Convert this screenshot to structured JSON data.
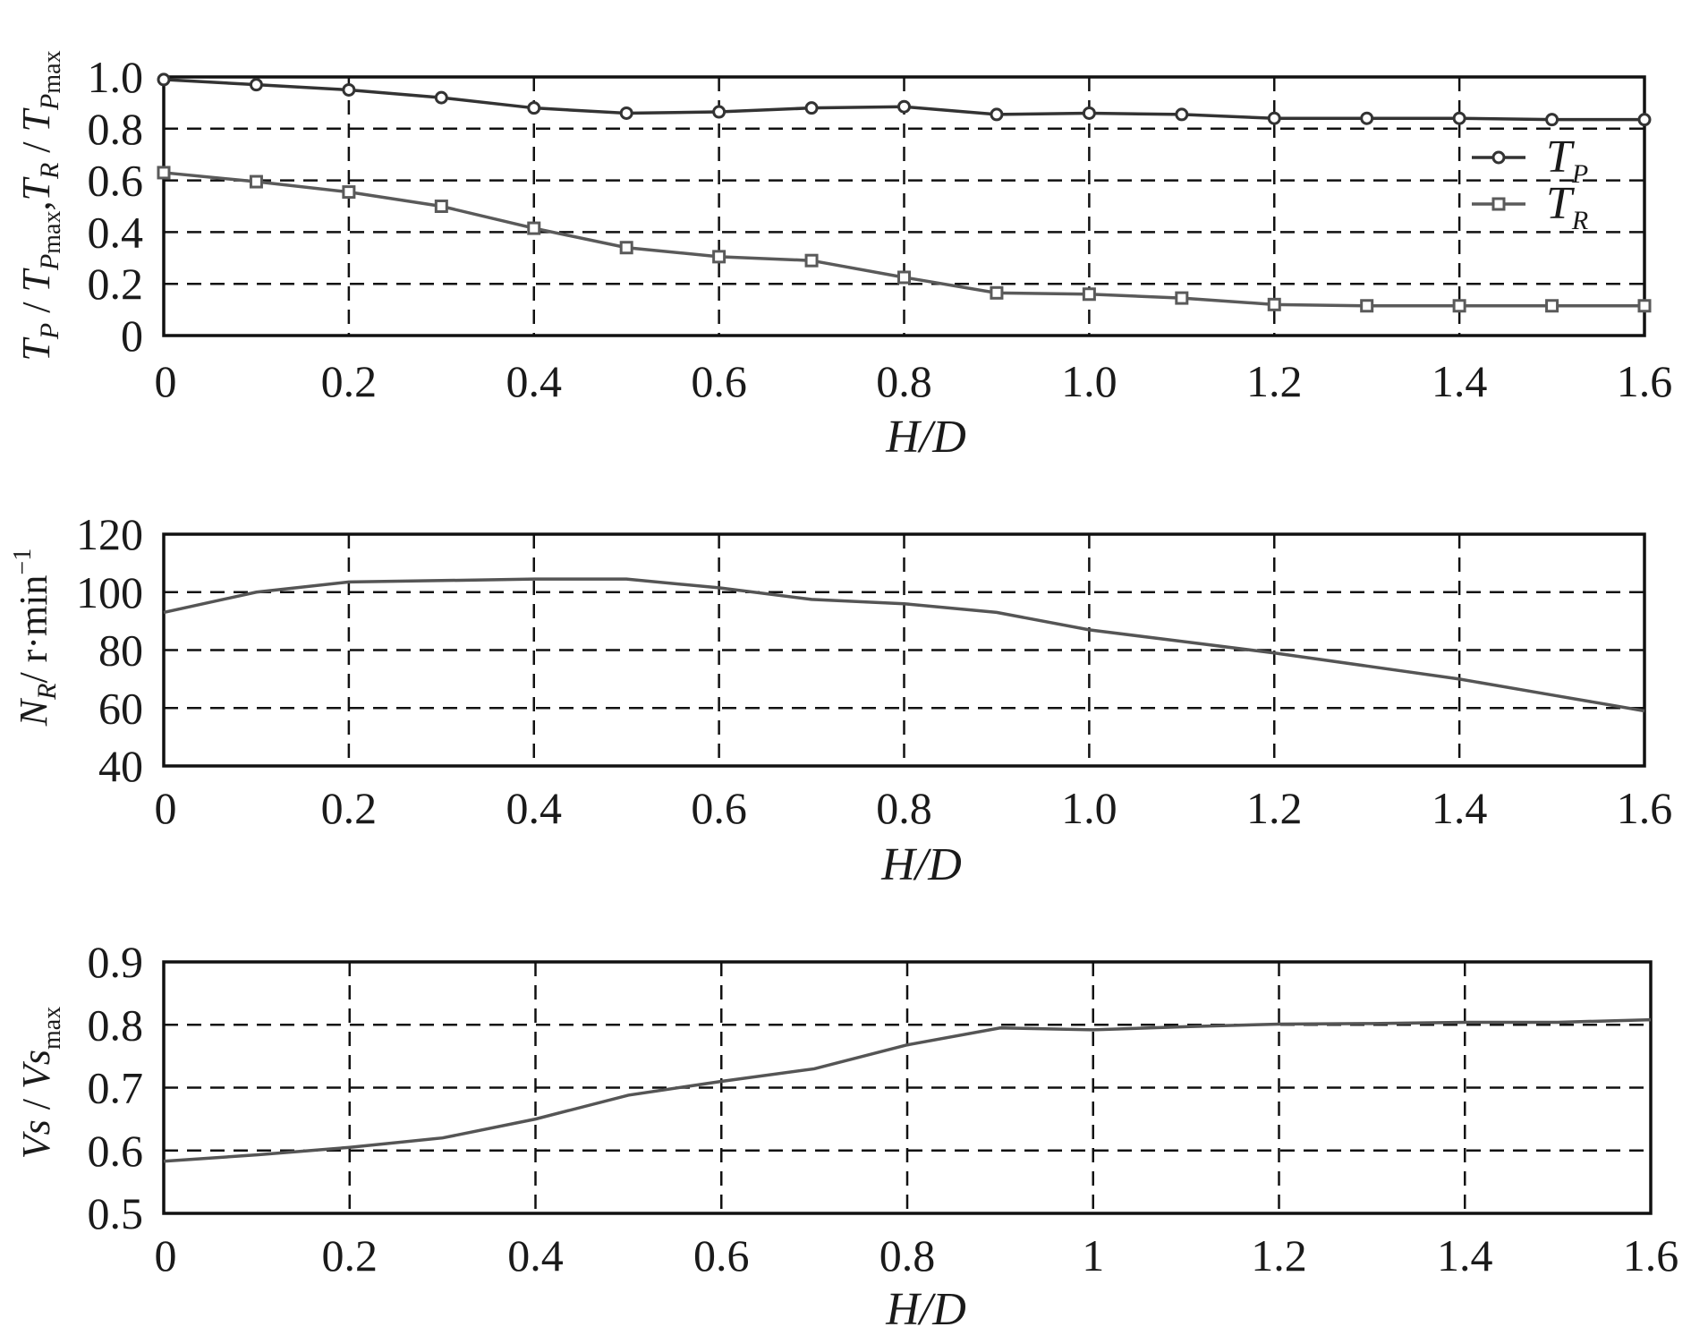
{
  "chart_data": [
    {
      "type": "line",
      "xlabel": "H/D",
      "ylabel": {
        "part1": "T",
        "part1_sub": "P",
        "sep1": " / ",
        "part2": "T",
        "part2_sub": "P",
        "part2_subsub": "max",
        "comma": ",",
        "part3": "T",
        "part3_sub": "R",
        "sep2": " / ",
        "part4": "T",
        "part4_sub": "P",
        "part4_subsub": "max"
      },
      "xlim": [
        0,
        1.6
      ],
      "ylim": [
        0,
        1.0
      ],
      "xticks": [
        "0",
        "0.2",
        "0.4",
        "0.6",
        "0.8",
        "1.0",
        "1.2",
        "1.4",
        "1.6"
      ],
      "yticks": [
        "0",
        "0.2",
        "0.4",
        "0.6",
        "0.8",
        "1.0"
      ],
      "ytick_values": [
        0,
        0.2,
        0.4,
        0.6,
        0.8,
        1.0
      ],
      "grid": true,
      "legend_position": "right",
      "series": [
        {
          "name": "T",
          "name_sub": "P",
          "marker": "circle",
          "color": "#333333",
          "x": [
            0,
            0.1,
            0.2,
            0.3,
            0.4,
            0.5,
            0.6,
            0.7,
            0.8,
            0.9,
            1.0,
            1.1,
            1.2,
            1.3,
            1.4,
            1.5,
            1.6
          ],
          "y": [
            0.99,
            0.97,
            0.95,
            0.92,
            0.88,
            0.86,
            0.865,
            0.88,
            0.885,
            0.855,
            0.86,
            0.855,
            0.84,
            0.84,
            0.84,
            0.835,
            0.835
          ]
        },
        {
          "name": "T",
          "name_sub": "R",
          "marker": "square",
          "color": "#5a5a5a",
          "x": [
            0,
            0.1,
            0.2,
            0.3,
            0.4,
            0.5,
            0.6,
            0.7,
            0.8,
            0.9,
            1.0,
            1.1,
            1.2,
            1.3,
            1.4,
            1.5,
            1.6
          ],
          "y": [
            0.63,
            0.595,
            0.555,
            0.5,
            0.415,
            0.34,
            0.305,
            0.29,
            0.225,
            0.165,
            0.16,
            0.145,
            0.12,
            0.115,
            0.115,
            0.115,
            0.115
          ]
        }
      ]
    },
    {
      "type": "line",
      "xlabel": "H/D",
      "ylabel": {
        "part1": "N",
        "part1_sub": "R",
        "unit": "/ r·min",
        "unit_sup": "−1"
      },
      "xlim": [
        0,
        1.6
      ],
      "ylim": [
        40,
        120
      ],
      "xticks": [
        "0",
        "0.2",
        "0.4",
        "0.6",
        "0.8",
        "1.0",
        "1.2",
        "1.4",
        "1.6"
      ],
      "yticks": [
        "40",
        "60",
        "80",
        "100",
        "120"
      ],
      "ytick_values": [
        40,
        60,
        80,
        100,
        120
      ],
      "grid": true,
      "series": [
        {
          "marker": "none",
          "color": "#555555",
          "x": [
            0,
            0.1,
            0.2,
            0.3,
            0.4,
            0.5,
            0.6,
            0.7,
            0.8,
            0.9,
            1.0,
            1.1,
            1.2,
            1.3,
            1.4,
            1.5,
            1.6
          ],
          "y": [
            93,
            100,
            103.5,
            104,
            104.5,
            104.5,
            101.5,
            97.5,
            96,
            93,
            87,
            83,
            79,
            74.5,
            70,
            64.5,
            59
          ]
        }
      ]
    },
    {
      "type": "line",
      "xlabel": "H/D",
      "ylabel": {
        "part1": "Vs",
        "sep1": " / ",
        "part2": "Vs",
        "part2_sub": "max"
      },
      "xlim": [
        0,
        1.6
      ],
      "ylim": [
        0.5,
        0.9
      ],
      "xticks": [
        "0",
        "0.2",
        "0.4",
        "0.6",
        "0.8",
        "1",
        "1.2",
        "1.4",
        "1.6"
      ],
      "yticks": [
        "0.5",
        "0.6",
        "0.7",
        "0.8",
        "0.9"
      ],
      "ytick_values": [
        0.5,
        0.6,
        0.7,
        0.8,
        0.9
      ],
      "grid": true,
      "series": [
        {
          "marker": "none",
          "color": "#555555",
          "x": [
            0,
            0.1,
            0.2,
            0.3,
            0.4,
            0.5,
            0.6,
            0.7,
            0.8,
            0.9,
            1.0,
            1.1,
            1.2,
            1.3,
            1.4,
            1.5,
            1.6
          ],
          "y": [
            0.583,
            0.593,
            0.605,
            0.62,
            0.65,
            0.688,
            0.71,
            0.73,
            0.768,
            0.795,
            0.792,
            0.797,
            0.801,
            0.802,
            0.804,
            0.804,
            0.808
          ]
        }
      ]
    }
  ]
}
